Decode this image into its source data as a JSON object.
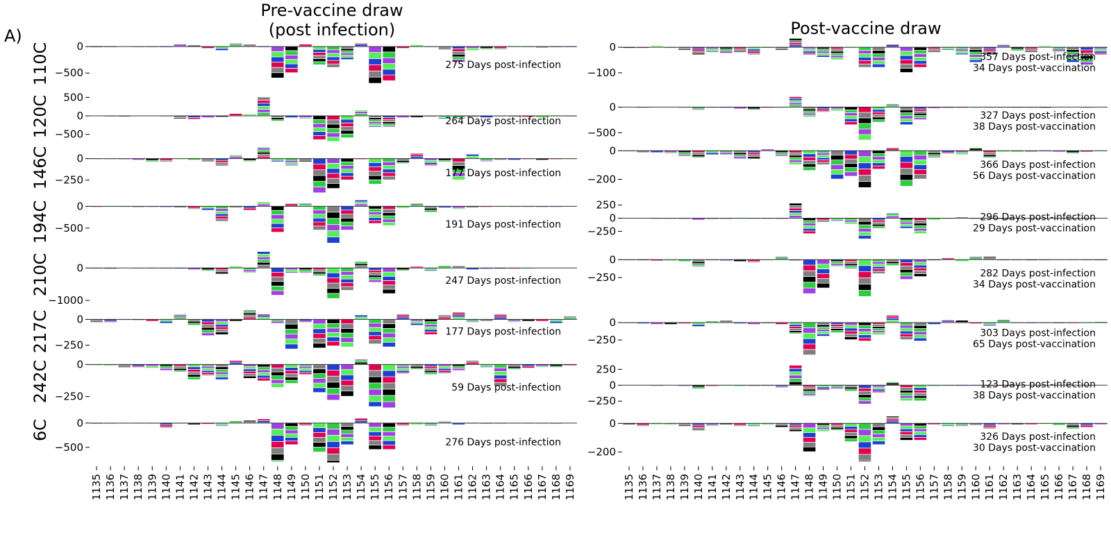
{
  "figure": {
    "panel_label": "A)",
    "left_title": "Pre-vaccine draw\n(post infection)",
    "right_title": "Post-vaccine draw"
  },
  "chart_data": {
    "type": "bar",
    "description_of_marks": "stacked amino-acid logo letters per site, positive above and negative below zero",
    "sites": [
      "1135",
      "1136",
      "1137",
      "1138",
      "1139",
      "1140",
      "1141",
      "1142",
      "1143",
      "1144",
      "1145",
      "1146",
      "1147",
      "1148",
      "1149",
      "1150",
      "1151",
      "1152",
      "1153",
      "1154",
      "1155",
      "1156",
      "1157",
      "1158",
      "1159",
      "1160",
      "1161",
      "1162",
      "1163",
      "1164",
      "1165",
      "1166",
      "1167",
      "1168",
      "1169"
    ],
    "letter_colors": [
      "#000000",
      "#1f3fd0",
      "#2ecc40",
      "#e0004f",
      "#a040e0",
      "#7f7f7f",
      "#55ee55"
    ],
    "rows": [
      {
        "sample": "110C",
        "pre": {
          "ylim": [
            -720,
            120
          ],
          "yticks": [
            0,
            -500
          ],
          "ytick_labels": [
            "0",
            "−500"
          ],
          "annotation": "275 Days post-infection",
          "values": [
            -10,
            -10,
            -5,
            -8,
            -15,
            -20,
            40,
            20,
            -40,
            -80,
            60,
            40,
            -10,
            -600,
            -500,
            40,
            -350,
            -400,
            -250,
            60,
            -700,
            -650,
            -40,
            30,
            -20,
            -60,
            -300,
            -80,
            -60,
            -50,
            -20,
            -20,
            -30,
            -20,
            -10
          ]
        },
        "post": {
          "ylim": [
            -130,
            30
          ],
          "yticks": [
            0,
            -100
          ],
          "ytick_labels": [
            "0",
            "−100"
          ],
          "annotation": "357 Days post-infection\n34 Days post-vaccination",
          "values": [
            -5,
            -5,
            5,
            -5,
            -10,
            -30,
            -20,
            -25,
            -20,
            -30,
            -5,
            -10,
            35,
            -30,
            -40,
            -50,
            -5,
            -80,
            -80,
            10,
            -100,
            -80,
            -20,
            -10,
            -30,
            -60,
            -30,
            10,
            -15,
            -20,
            5,
            -20,
            -60,
            -70,
            -30
          ]
        }
      },
      {
        "sample": "120C",
        "pre": {
          "ylim": [
            -750,
            600
          ],
          "yticks": [
            500,
            0,
            -500
          ],
          "ytick_labels": [
            "500",
            "0",
            "−500"
          ],
          "annotation": "264 Days post-infection",
          "values": [
            -5,
            -10,
            -10,
            -5,
            -5,
            -15,
            -80,
            -100,
            -60,
            -40,
            60,
            40,
            500,
            -150,
            -60,
            -80,
            -650,
            -700,
            -600,
            150,
            -300,
            -300,
            -60,
            -50,
            -30,
            -80,
            -80,
            -40,
            -60,
            -20,
            -20,
            -40,
            -60,
            -20,
            -10
          ]
        },
        "post": {
          "ylim": [
            -700,
            250
          ],
          "yticks": [
            0,
            -500
          ],
          "ytick_labels": [
            "0",
            "−500"
          ],
          "annotation": "327 Days post-infection\n38 Days post-vaccination",
          "values": [
            -5,
            -10,
            -5,
            -5,
            -10,
            -60,
            -20,
            -20,
            -40,
            -50,
            -20,
            -20,
            200,
            -200,
            -100,
            -80,
            -350,
            -650,
            -300,
            60,
            -350,
            -250,
            -30,
            -20,
            -10,
            -20,
            -10,
            -10,
            -10,
            -10,
            -10,
            -5,
            -5,
            -10,
            -5
          ]
        }
      },
      {
        "sample": "146C",
        "pre": {
          "ylim": [
            -430,
            150
          ],
          "yticks": [
            0,
            -250
          ],
          "ytick_labels": [
            "0",
            "−250"
          ],
          "annotation": "177 Days post-infection",
          "values": [
            -5,
            -10,
            -10,
            -20,
            -40,
            -40,
            -10,
            -20,
            -30,
            -80,
            40,
            -30,
            130,
            -40,
            -80,
            -40,
            -400,
            -350,
            -250,
            -10,
            -300,
            -250,
            -60,
            60,
            -80,
            -40,
            -250,
            50,
            -30,
            -20,
            -20,
            -10,
            -20,
            -10,
            -10
          ]
        },
        "post": {
          "ylim": [
            -280,
            40
          ],
          "yticks": [
            0,
            -200
          ],
          "ytick_labels": [
            "0",
            "−200"
          ],
          "annotation": "366 Days post-infection\n56 Days post-vaccination",
          "values": [
            -5,
            -15,
            -15,
            -20,
            -40,
            -50,
            -30,
            -30,
            -60,
            -60,
            10,
            -40,
            -100,
            -140,
            -100,
            -200,
            -180,
            -260,
            -130,
            20,
            -250,
            -200,
            -50,
            -20,
            -30,
            20,
            -50,
            -10,
            -10,
            -10,
            -5,
            -10,
            -20,
            -10,
            -5
          ]
        }
      },
      {
        "sample": "194C",
        "pre": {
          "ylim": [
            -870,
            150
          ],
          "yticks": [
            0,
            -500
          ],
          "ytick_labels": [
            "0",
            "−500"
          ],
          "annotation": "191 Days post-infection",
          "values": [
            -10,
            -10,
            -10,
            -30,
            -20,
            -30,
            -30,
            -60,
            -100,
            -350,
            -40,
            -100,
            100,
            -600,
            60,
            60,
            -550,
            -850,
            -550,
            140,
            -400,
            -450,
            -50,
            60,
            -150,
            -40,
            -70,
            -30,
            -10,
            -20,
            -10,
            -10,
            -10,
            -10,
            -5
          ]
        },
        "post": {
          "ylim": [
            -430,
            350
          ],
          "yticks": [
            250,
            0,
            -250
          ],
          "ytick_labels": [
            "250",
            "0",
            "−250"
          ],
          "annotation": "296 Days post-infection\n29 Days post-vaccination",
          "values": [
            -5,
            -5,
            -10,
            -10,
            -20,
            -40,
            -10,
            -10,
            -10,
            -20,
            -10,
            -20,
            280,
            -300,
            -80,
            -50,
            -120,
            -400,
            -200,
            90,
            -200,
            -300,
            -40,
            -20,
            20,
            -10,
            -10,
            -10,
            -5,
            -5,
            -5,
            -5,
            -10,
            -5,
            -5
          ]
        }
      },
      {
        "sample": "210C",
        "pre": {
          "ylim": [
            -1150,
            520
          ],
          "yticks": [
            0,
            -1000
          ],
          "ytick_labels": [
            "0",
            "−1000"
          ],
          "annotation": "247 Days post-infection",
          "values": [
            -20,
            -20,
            -10,
            -20,
            -20,
            -30,
            -30,
            -60,
            -100,
            -200,
            50,
            -150,
            500,
            -850,
            -150,
            -150,
            -250,
            -950,
            -700,
            200,
            -450,
            -800,
            -80,
            40,
            -100,
            70,
            60,
            -60,
            -40,
            -20,
            -20,
            -20,
            -10,
            -10,
            -10
          ]
        },
        "post": {
          "ylim": [
            -560,
            90
          ],
          "yticks": [
            0,
            -250
          ],
          "ytick_labels": [
            "0",
            "−250"
          ],
          "annotation": "282 Days post-infection\n34 Days post-vaccination",
          "values": [
            -5,
            -10,
            -20,
            -20,
            -30,
            -100,
            -10,
            -20,
            -30,
            -40,
            -5,
            40,
            -20,
            -480,
            -400,
            -100,
            -130,
            -520,
            -200,
            -90,
            -280,
            -240,
            -10,
            20,
            -30,
            40,
            40,
            -10,
            -10,
            -10,
            -10,
            -5,
            -10,
            -5,
            -5
          ]
        }
      },
      {
        "sample": "217C",
        "pre": {
          "ylim": [
            -300,
            110
          ],
          "yticks": [
            0,
            -250
          ],
          "ytick_labels": [
            "0",
            "−250"
          ],
          "annotation": "177 Days post-infection",
          "values": [
            -30,
            -30,
            -10,
            -10,
            -20,
            -40,
            50,
            -60,
            -160,
            -150,
            -20,
            90,
            50,
            -40,
            -290,
            -30,
            -280,
            -260,
            -270,
            40,
            -240,
            -270,
            50,
            -60,
            -150,
            40,
            70,
            -30,
            -20,
            50,
            -30,
            -20,
            -20,
            -40,
            30
          ]
        },
        "post": {
          "ylim": [
            -520,
            130
          ],
          "yticks": [
            0,
            -250
          ],
          "ytick_labels": [
            "0",
            "−250"
          ],
          "annotation": "303 Days post-infection\n65 Days post-vaccination",
          "values": [
            -15,
            -20,
            -30,
            -30,
            -20,
            -60,
            20,
            30,
            -20,
            -30,
            -10,
            -30,
            -160,
            -470,
            -200,
            -150,
            -250,
            -270,
            -180,
            110,
            -250,
            -270,
            -30,
            40,
            30,
            -20,
            -50,
            40,
            -10,
            -10,
            -10,
            -10,
            -10,
            -15,
            10
          ]
        }
      },
      {
        "sample": "242C",
        "pre": {
          "ylim": [
            -360,
            40
          ],
          "yticks": [
            0,
            -250
          ],
          "ytick_labels": [
            "0",
            "−250"
          ],
          "annotation": "59 Days post-infection",
          "values": [
            -10,
            -10,
            -20,
            -20,
            -30,
            -50,
            -60,
            -120,
            -90,
            -120,
            30,
            -110,
            -130,
            -180,
            -150,
            -80,
            -220,
            -280,
            -250,
            40,
            -330,
            -340,
            -70,
            -40,
            -80,
            -70,
            -50,
            30,
            -20,
            -170,
            -40,
            -30,
            -20,
            -20,
            -10
          ]
        },
        "post": {
          "ylim": [
            -400,
            330
          ],
          "yticks": [
            250,
            0,
            -250
          ],
          "ytick_labels": [
            "250",
            "0",
            "−250"
          ],
          "annotation": "123 Days post-infection\n38 Days post-vaccination",
          "values": [
            -5,
            -5,
            -10,
            -5,
            -20,
            -60,
            -20,
            -10,
            -20,
            -20,
            -10,
            -40,
            310,
            -180,
            -80,
            -60,
            -100,
            -300,
            -120,
            50,
            -250,
            -250,
            -20,
            -10,
            -10,
            -10,
            -10,
            -10,
            -5,
            -5,
            -5,
            -5,
            -5,
            -5,
            -5
          ]
        }
      },
      {
        "sample": "6C",
        "pre": {
          "ylim": [
            -830,
            140
          ],
          "yticks": [
            0,
            -500
          ],
          "ytick_labels": [
            "0",
            "−500"
          ],
          "annotation": "276 Days post-infection",
          "values": [
            -10,
            -10,
            -10,
            -10,
            -20,
            -100,
            -20,
            -40,
            -30,
            -50,
            40,
            50,
            80,
            -800,
            -450,
            -50,
            -600,
            -820,
            -450,
            100,
            -550,
            -550,
            -60,
            -40,
            -50,
            30,
            -40,
            -10,
            -20,
            -10,
            -10,
            -10,
            -10,
            -10,
            -5
          ]
        },
        "post": {
          "ylim": [
            -280,
            50
          ],
          "yticks": [
            0,
            -200
          ],
          "ytick_labels": [
            "0",
            "−200"
          ],
          "annotation": "326 Days post-infection\n30 Days post-vaccination",
          "values": [
            -10,
            -20,
            -10,
            -10,
            -20,
            -50,
            -20,
            -10,
            -20,
            -20,
            -10,
            -30,
            -60,
            -200,
            -60,
            -50,
            -130,
            -270,
            -150,
            50,
            -120,
            -120,
            -10,
            -20,
            -20,
            -15,
            -40,
            -10,
            -10,
            -10,
            -5,
            -15,
            -40,
            -30,
            -10
          ]
        }
      }
    ]
  }
}
